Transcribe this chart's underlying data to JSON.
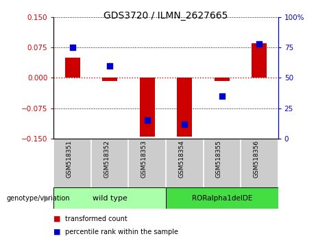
{
  "title": "GDS3720 / ILMN_2627665",
  "samples": [
    "GSM518351",
    "GSM518352",
    "GSM518353",
    "GSM518354",
    "GSM518355",
    "GSM518356"
  ],
  "transformed_counts": [
    0.05,
    -0.008,
    -0.145,
    -0.145,
    -0.008,
    0.085
  ],
  "percentile_ranks": [
    75,
    60,
    15,
    12,
    35,
    78
  ],
  "left_ylim": [
    -0.15,
    0.15
  ],
  "right_ylim": [
    0,
    100
  ],
  "left_yticks": [
    -0.15,
    -0.075,
    0,
    0.075,
    0.15
  ],
  "right_yticks": [
    0,
    25,
    50,
    75,
    100
  ],
  "right_yticklabels": [
    "0",
    "25",
    "50",
    "75",
    "100%"
  ],
  "left_color": "#cc0000",
  "right_color": "#0000cc",
  "bar_color": "#cc0000",
  "dot_color": "#0000cc",
  "bar_width": 0.4,
  "dot_size": 28,
  "wt_color": "#aaffaa",
  "rora_color": "#44dd44",
  "label_bg": "#cccccc",
  "legend_items": [
    "transformed count",
    "percentile rank within the sample"
  ],
  "legend_colors": [
    "#cc0000",
    "#0000cc"
  ],
  "genotype_label": "genotype/variation",
  "figsize": [
    4.61,
    3.54
  ],
  "dpi": 100
}
